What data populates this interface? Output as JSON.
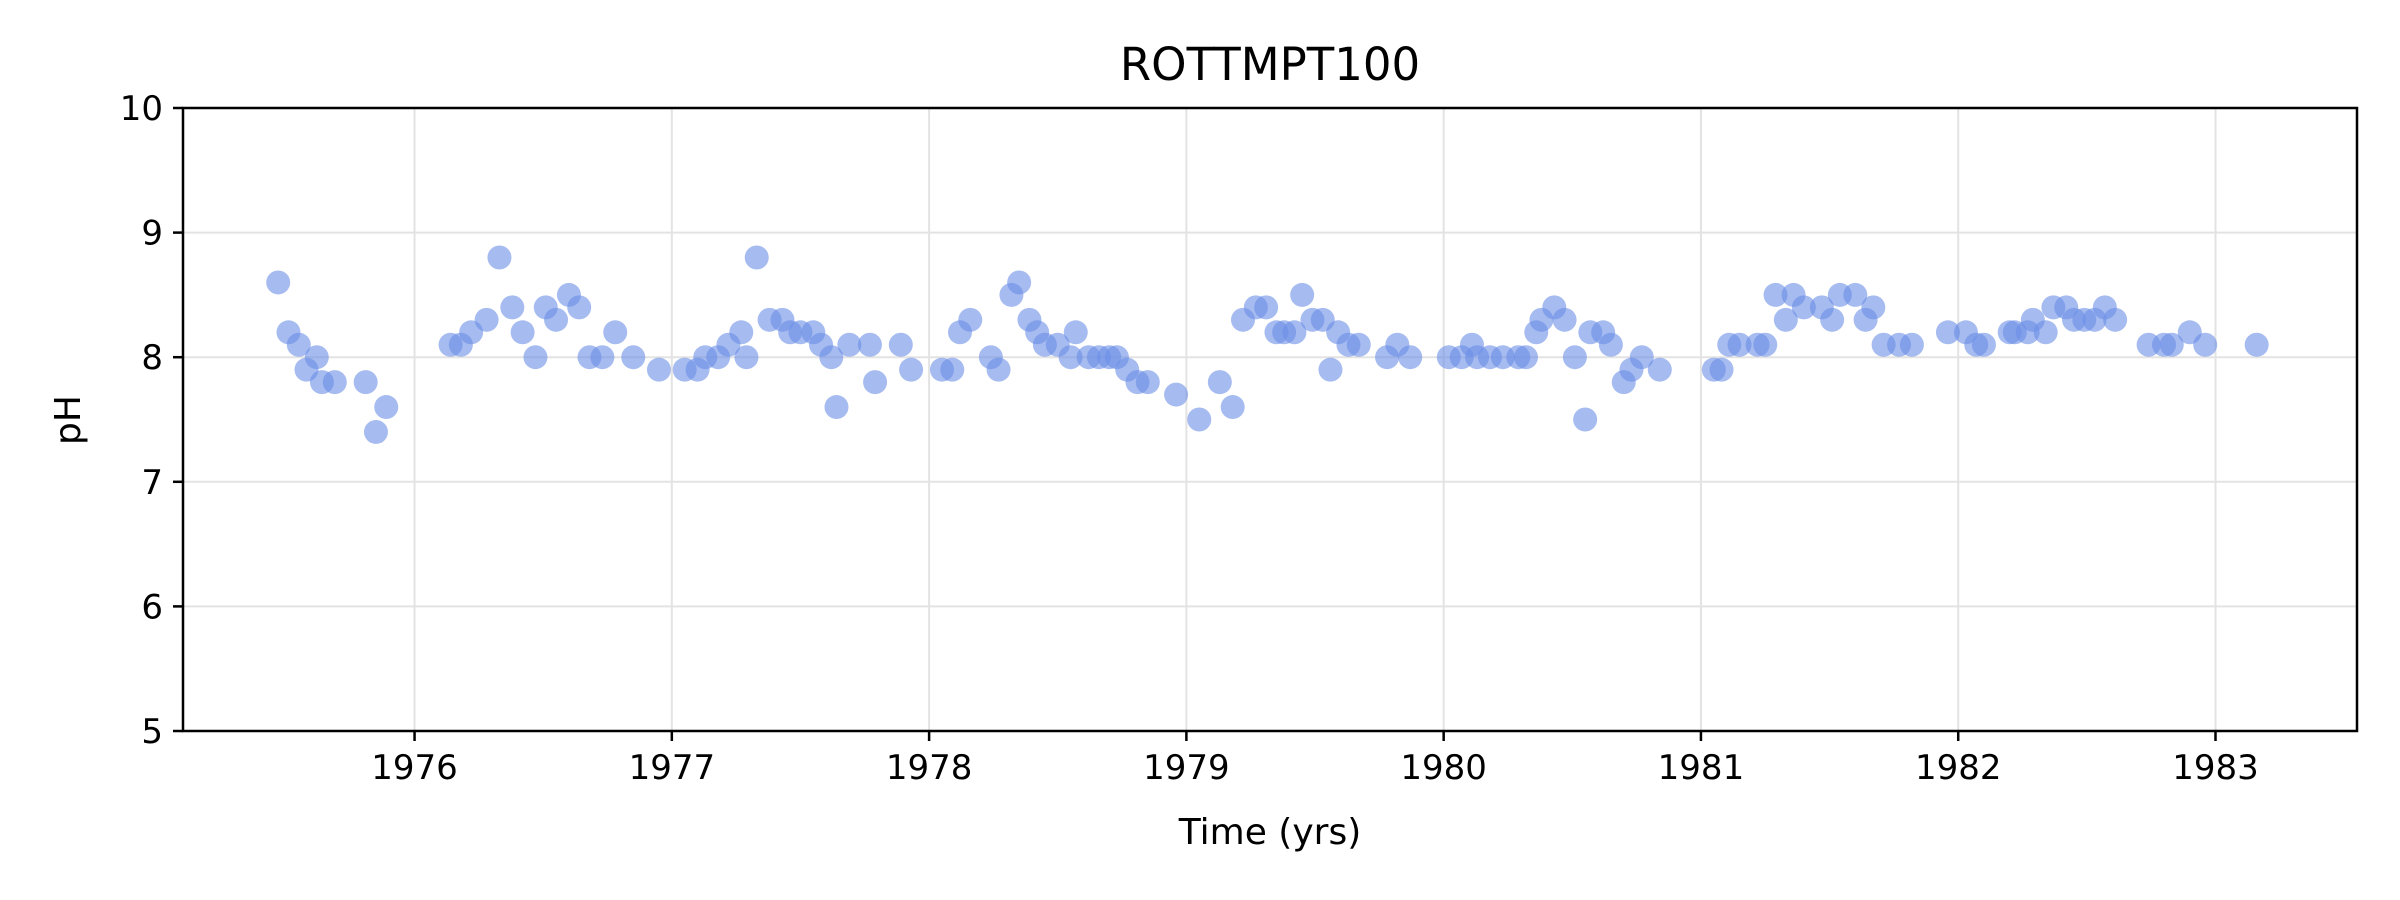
{
  "chart_data": {
    "type": "scatter",
    "title": "ROTTMPT100",
    "xlabel": "Time (yrs)",
    "ylabel": "pH",
    "xlim": [
      1975.1,
      1983.55
    ],
    "ylim": [
      5,
      10
    ],
    "xticks": [
      1976,
      1977,
      1978,
      1979,
      1980,
      1981,
      1982,
      1983
    ],
    "yticks": [
      5,
      6,
      7,
      8,
      9,
      10
    ],
    "grid": true,
    "marker_color": "#6a8ee6",
    "series": [
      {
        "name": "pH",
        "points": [
          [
            1975.47,
            8.6
          ],
          [
            1975.51,
            8.2
          ],
          [
            1975.55,
            8.1
          ],
          [
            1975.58,
            7.9
          ],
          [
            1975.62,
            8.0
          ],
          [
            1975.64,
            7.8
          ],
          [
            1975.69,
            7.8
          ],
          [
            1975.81,
            7.8
          ],
          [
            1975.85,
            7.4
          ],
          [
            1975.89,
            7.6
          ],
          [
            1976.14,
            8.1
          ],
          [
            1976.18,
            8.1
          ],
          [
            1976.22,
            8.2
          ],
          [
            1976.28,
            8.3
          ],
          [
            1976.33,
            8.8
          ],
          [
            1976.38,
            8.4
          ],
          [
            1976.42,
            8.2
          ],
          [
            1976.47,
            8.0
          ],
          [
            1976.51,
            8.4
          ],
          [
            1976.55,
            8.3
          ],
          [
            1976.6,
            8.5
          ],
          [
            1976.64,
            8.4
          ],
          [
            1976.68,
            8.0
          ],
          [
            1976.73,
            8.0
          ],
          [
            1976.78,
            8.2
          ],
          [
            1976.85,
            8.0
          ],
          [
            1976.95,
            7.9
          ],
          [
            1977.05,
            7.9
          ],
          [
            1977.1,
            7.9
          ],
          [
            1977.13,
            8.0
          ],
          [
            1977.18,
            8.0
          ],
          [
            1977.22,
            8.1
          ],
          [
            1977.27,
            8.2
          ],
          [
            1977.29,
            8.0
          ],
          [
            1977.33,
            8.8
          ],
          [
            1977.38,
            8.3
          ],
          [
            1977.43,
            8.3
          ],
          [
            1977.46,
            8.2
          ],
          [
            1977.5,
            8.2
          ],
          [
            1977.55,
            8.2
          ],
          [
            1977.58,
            8.1
          ],
          [
            1977.62,
            8.0
          ],
          [
            1977.64,
            7.6
          ],
          [
            1977.69,
            8.1
          ],
          [
            1977.77,
            8.1
          ],
          [
            1977.79,
            7.8
          ],
          [
            1977.89,
            8.1
          ],
          [
            1977.93,
            7.9
          ],
          [
            1978.05,
            7.9
          ],
          [
            1978.09,
            7.9
          ],
          [
            1978.12,
            8.2
          ],
          [
            1978.16,
            8.3
          ],
          [
            1978.24,
            8.0
          ],
          [
            1978.27,
            7.9
          ],
          [
            1978.32,
            8.5
          ],
          [
            1978.35,
            8.6
          ],
          [
            1978.39,
            8.3
          ],
          [
            1978.42,
            8.2
          ],
          [
            1978.45,
            8.1
          ],
          [
            1978.5,
            8.1
          ],
          [
            1978.55,
            8.0
          ],
          [
            1978.57,
            8.2
          ],
          [
            1978.62,
            8.0
          ],
          [
            1978.66,
            8.0
          ],
          [
            1978.7,
            8.0
          ],
          [
            1978.73,
            8.0
          ],
          [
            1978.77,
            7.9
          ],
          [
            1978.81,
            7.8
          ],
          [
            1978.85,
            7.8
          ],
          [
            1978.96,
            7.7
          ],
          [
            1979.05,
            7.5
          ],
          [
            1979.13,
            7.8
          ],
          [
            1979.18,
            7.6
          ],
          [
            1979.22,
            8.3
          ],
          [
            1979.27,
            8.4
          ],
          [
            1979.31,
            8.4
          ],
          [
            1979.35,
            8.2
          ],
          [
            1979.38,
            8.2
          ],
          [
            1979.42,
            8.2
          ],
          [
            1979.45,
            8.5
          ],
          [
            1979.49,
            8.3
          ],
          [
            1979.53,
            8.3
          ],
          [
            1979.56,
            7.9
          ],
          [
            1979.59,
            8.2
          ],
          [
            1979.63,
            8.1
          ],
          [
            1979.67,
            8.1
          ],
          [
            1979.78,
            8.0
          ],
          [
            1979.82,
            8.1
          ],
          [
            1979.87,
            8.0
          ],
          [
            1980.02,
            8.0
          ],
          [
            1980.07,
            8.0
          ],
          [
            1980.11,
            8.1
          ],
          [
            1980.13,
            8.0
          ],
          [
            1980.18,
            8.0
          ],
          [
            1980.23,
            8.0
          ],
          [
            1980.29,
            8.0
          ],
          [
            1980.32,
            8.0
          ],
          [
            1980.36,
            8.2
          ],
          [
            1980.38,
            8.3
          ],
          [
            1980.43,
            8.4
          ],
          [
            1980.47,
            8.3
          ],
          [
            1980.51,
            8.0
          ],
          [
            1980.55,
            7.5
          ],
          [
            1980.57,
            8.2
          ],
          [
            1980.62,
            8.2
          ],
          [
            1980.65,
            8.1
          ],
          [
            1980.7,
            7.8
          ],
          [
            1980.73,
            7.9
          ],
          [
            1980.77,
            8.0
          ],
          [
            1980.84,
            7.9
          ],
          [
            1981.05,
            7.9
          ],
          [
            1981.08,
            7.9
          ],
          [
            1981.11,
            8.1
          ],
          [
            1981.15,
            8.1
          ],
          [
            1981.22,
            8.1
          ],
          [
            1981.25,
            8.1
          ],
          [
            1981.29,
            8.5
          ],
          [
            1981.33,
            8.3
          ],
          [
            1981.36,
            8.5
          ],
          [
            1981.4,
            8.4
          ],
          [
            1981.47,
            8.4
          ],
          [
            1981.51,
            8.3
          ],
          [
            1981.54,
            8.5
          ],
          [
            1981.6,
            8.5
          ],
          [
            1981.64,
            8.3
          ],
          [
            1981.67,
            8.4
          ],
          [
            1981.71,
            8.1
          ],
          [
            1981.77,
            8.1
          ],
          [
            1981.82,
            8.1
          ],
          [
            1981.96,
            8.2
          ],
          [
            1982.03,
            8.2
          ],
          [
            1982.07,
            8.1
          ],
          [
            1982.1,
            8.1
          ],
          [
            1982.2,
            8.2
          ],
          [
            1982.22,
            8.2
          ],
          [
            1982.27,
            8.2
          ],
          [
            1982.29,
            8.3
          ],
          [
            1982.34,
            8.2
          ],
          [
            1982.37,
            8.4
          ],
          [
            1982.42,
            8.4
          ],
          [
            1982.45,
            8.3
          ],
          [
            1982.49,
            8.3
          ],
          [
            1982.53,
            8.3
          ],
          [
            1982.57,
            8.4
          ],
          [
            1982.61,
            8.3
          ],
          [
            1982.74,
            8.1
          ],
          [
            1982.8,
            8.1
          ],
          [
            1982.83,
            8.1
          ],
          [
            1982.9,
            8.2
          ],
          [
            1982.96,
            8.1
          ],
          [
            1983.16,
            8.1
          ]
        ]
      }
    ]
  }
}
